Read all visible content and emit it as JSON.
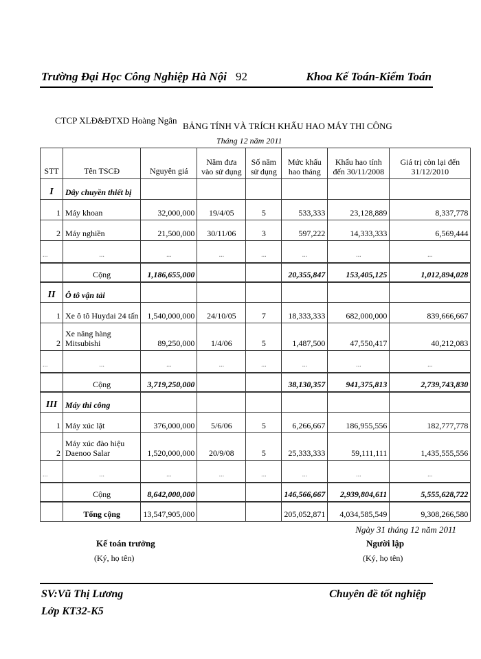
{
  "header": {
    "school": "Trường Đại Học Công Nghiệp Hà Nội",
    "page_number": "92",
    "faculty": "Khoa Kế Toán-Kiểm Toán"
  },
  "company": "CTCP XLĐ&ĐTXD Hoàng Ngân",
  "title": "BẢNG TÍNH VÀ TRÍCH KHẤU HAO MÁY THI CÔNG",
  "subtitle": "Tháng 12 năm 2011",
  "table": {
    "columns": [
      "STT",
      "Tên TSCĐ",
      "Nguyên giá",
      "Năm đưa vào sử dụng",
      "Số năm sử dụng",
      "Mức khấu hao tháng",
      "Khấu hao tính đến 30/11/2008",
      "Giá trị còn lại đến 31/12/2010"
    ],
    "rows": [
      {
        "type": "sec",
        "cells": [
          "I",
          "Dây chuyền thiết bị",
          "",
          "",
          "",
          "",
          "",
          ""
        ]
      },
      {
        "type": "item",
        "cells": [
          "1",
          "Máy khoan",
          "32,000,000",
          "19/4/05",
          "5",
          "533,333",
          "23,128,889",
          "8,337,778"
        ]
      },
      {
        "type": "item",
        "cells": [
          "2",
          "Máy nghiền",
          "21,500,000",
          "30/11/06",
          "3",
          "597,222",
          "14,333,333",
          "6,569,444"
        ]
      },
      {
        "type": "dots",
        "cells": [
          "...",
          "...",
          "...",
          "...",
          "...",
          "...",
          "...",
          "..."
        ]
      },
      {
        "type": "sub",
        "cells": [
          "",
          "Cộng",
          "1,186,655,000",
          "",
          "",
          "20,355,847",
          "153,405,125",
          "1,012,894,028"
        ]
      },
      {
        "type": "sec",
        "cells": [
          "II",
          "Ô tô vận tải",
          "",
          "",
          "",
          "",
          "",
          ""
        ]
      },
      {
        "type": "item",
        "cells": [
          "1",
          "Xe ô tô Huydai  24 tấn",
          "1,540,000,000",
          "24/10/05",
          "7",
          "18,333,333",
          "682,000,000",
          "839,666,667"
        ]
      },
      {
        "type": "item",
        "cells": [
          "2",
          "Xe nâng hàng Mitsubishi",
          "89,250,000",
          "1/4/06",
          "5",
          "1,487,500",
          "47,550,417",
          "40,212,083"
        ]
      },
      {
        "type": "dots",
        "cells": [
          "...",
          "...",
          "...",
          "...",
          "...",
          "...",
          "...",
          "..."
        ]
      },
      {
        "type": "sub",
        "cells": [
          "",
          "Cộng",
          "3,719,250,000",
          "",
          "",
          "38,130,357",
          "941,375,813",
          "2,739,743,830"
        ]
      },
      {
        "type": "sec",
        "cells": [
          "III",
          "Máy thi công",
          "",
          "",
          "",
          "",
          "",
          ""
        ]
      },
      {
        "type": "item",
        "cells": [
          "1",
          "Máy xúc lật",
          "376,000,000",
          "5/6/06",
          "5",
          "6,266,667",
          "186,955,556",
          "182,777,778"
        ]
      },
      {
        "type": "item",
        "cells": [
          "2",
          "Máy xúc  đào hiệu Daenoo Salar",
          "1,520,000,000",
          "20/9/08",
          "5",
          "25,333,333",
          "59,111,111",
          "1,435,555,556"
        ]
      },
      {
        "type": "dots",
        "cells": [
          "...",
          "...",
          "...",
          "...",
          "...",
          "...",
          "...",
          "..."
        ]
      },
      {
        "type": "sub",
        "cells": [
          "",
          "Cộng",
          "8,642,000,000",
          "",
          "",
          "146,566,667",
          "2,939,804,611",
          "5,555,628,722"
        ]
      },
      {
        "type": "total",
        "cells": [
          "",
          "Tổng cộng",
          "13,547,905,000",
          "",
          "",
          "205,052,871",
          "4,034,585,549",
          "9,308,266,580"
        ]
      }
    ]
  },
  "date_line": "Ngày 31 tháng 12 năm 2011",
  "signatures": {
    "left_title": "Kế toán trưởng",
    "left_note": "(Ký, họ tên)",
    "right_title": "Người lập",
    "right_note": "(Ký, họ tên)"
  },
  "footer": {
    "student": "SV:Vũ Thị Lương",
    "class": "Lớp KT32-K5",
    "topic": "Chuyên đề tốt nghiệp"
  }
}
